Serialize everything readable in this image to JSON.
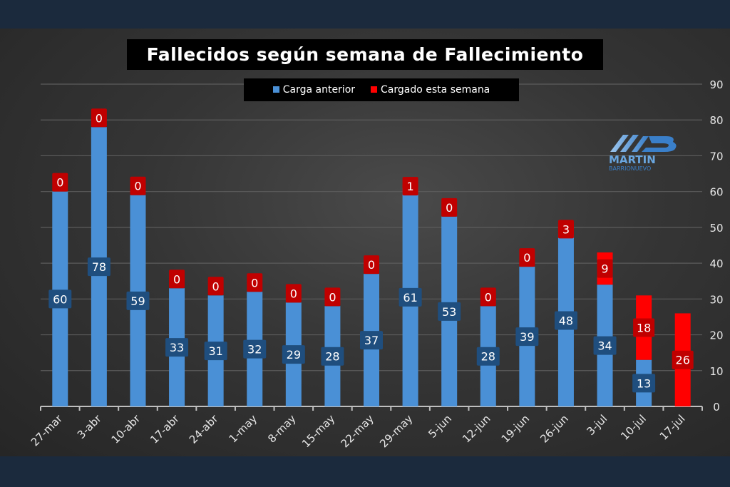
{
  "chart_data": {
    "type": "bar",
    "stacked": true,
    "title": "Fallecidos según semana de Fallecimiento",
    "categories": [
      "27-mar",
      "3-abr",
      "10-abr",
      "17-abr",
      "24-abr",
      "1-may",
      "8-may",
      "15-may",
      "22-may",
      "29-may",
      "5-jun",
      "12-jun",
      "19-jun",
      "26-jun",
      "3-jul",
      "10-jul",
      "17-jul"
    ],
    "series": [
      {
        "name": "Carga anterior",
        "color": "#4a90d6",
        "values": [
          60,
          78,
          59,
          33,
          31,
          32,
          29,
          28,
          37,
          61,
          53,
          28,
          39,
          48,
          34,
          13,
          0
        ]
      },
      {
        "name": "Cargado esta semana",
        "color": "#ff0000",
        "values": [
          0,
          0,
          0,
          0,
          0,
          0,
          0,
          0,
          0,
          1,
          0,
          0,
          0,
          3,
          9,
          18,
          26
        ]
      }
    ],
    "ylim": [
      0,
      90
    ],
    "yticks": [
      0,
      10,
      20,
      30,
      40,
      50,
      60,
      70,
      80,
      90
    ],
    "y_axis_side": "right",
    "grid": true,
    "legend_position": "top-center"
  },
  "logo": {
    "text_main": "MARTIN",
    "text_sub": "BARRIONUEVO"
  }
}
